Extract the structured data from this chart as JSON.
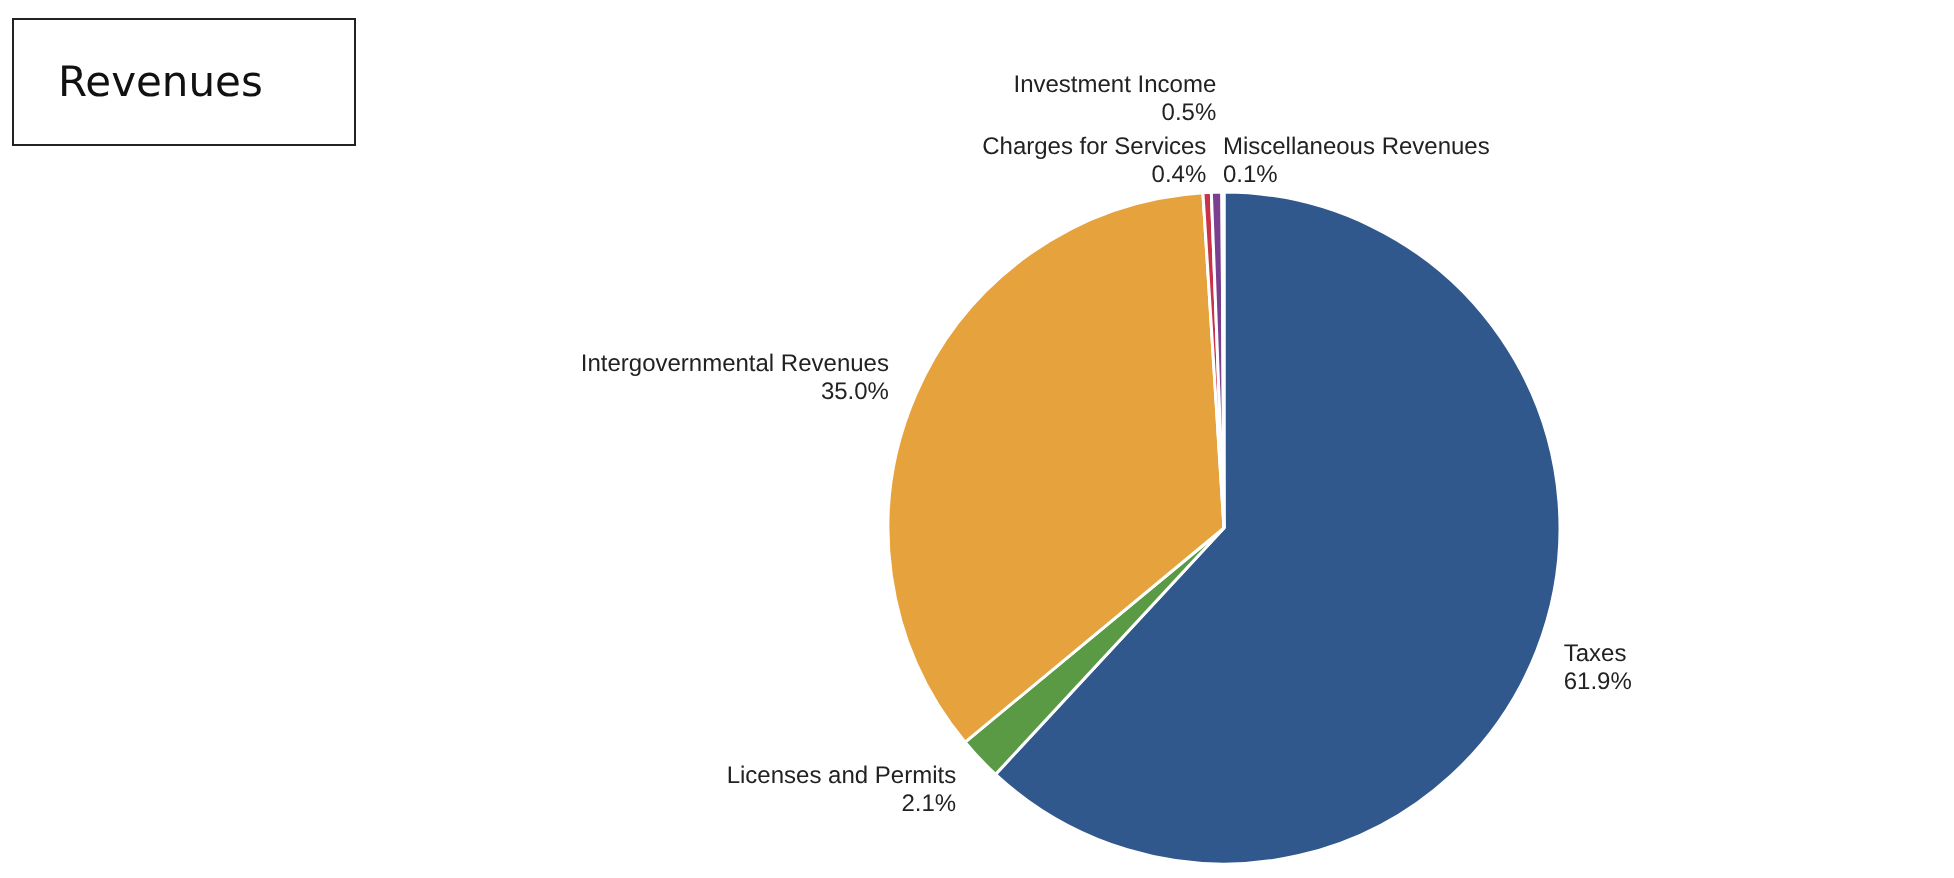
{
  "chart_data": {
    "type": "pie",
    "title": "Revenues",
    "categories": [
      "Taxes",
      "Licenses and Permits",
      "Intergovernmental Revenues",
      "Charges for Services",
      "Investment Income",
      "Miscellaneous Revenues"
    ],
    "values": [
      61.9,
      2.1,
      35.0,
      0.4,
      0.5,
      0.1
    ],
    "value_labels": [
      "61.9%",
      "2.1%",
      "35.0%",
      "0.4%",
      "0.5%",
      "0.1%"
    ],
    "colors": [
      "#30588c",
      "#5a9a45",
      "#e6a23c",
      "#c8334a",
      "#7b3f8f",
      "#3b6aa0"
    ]
  }
}
